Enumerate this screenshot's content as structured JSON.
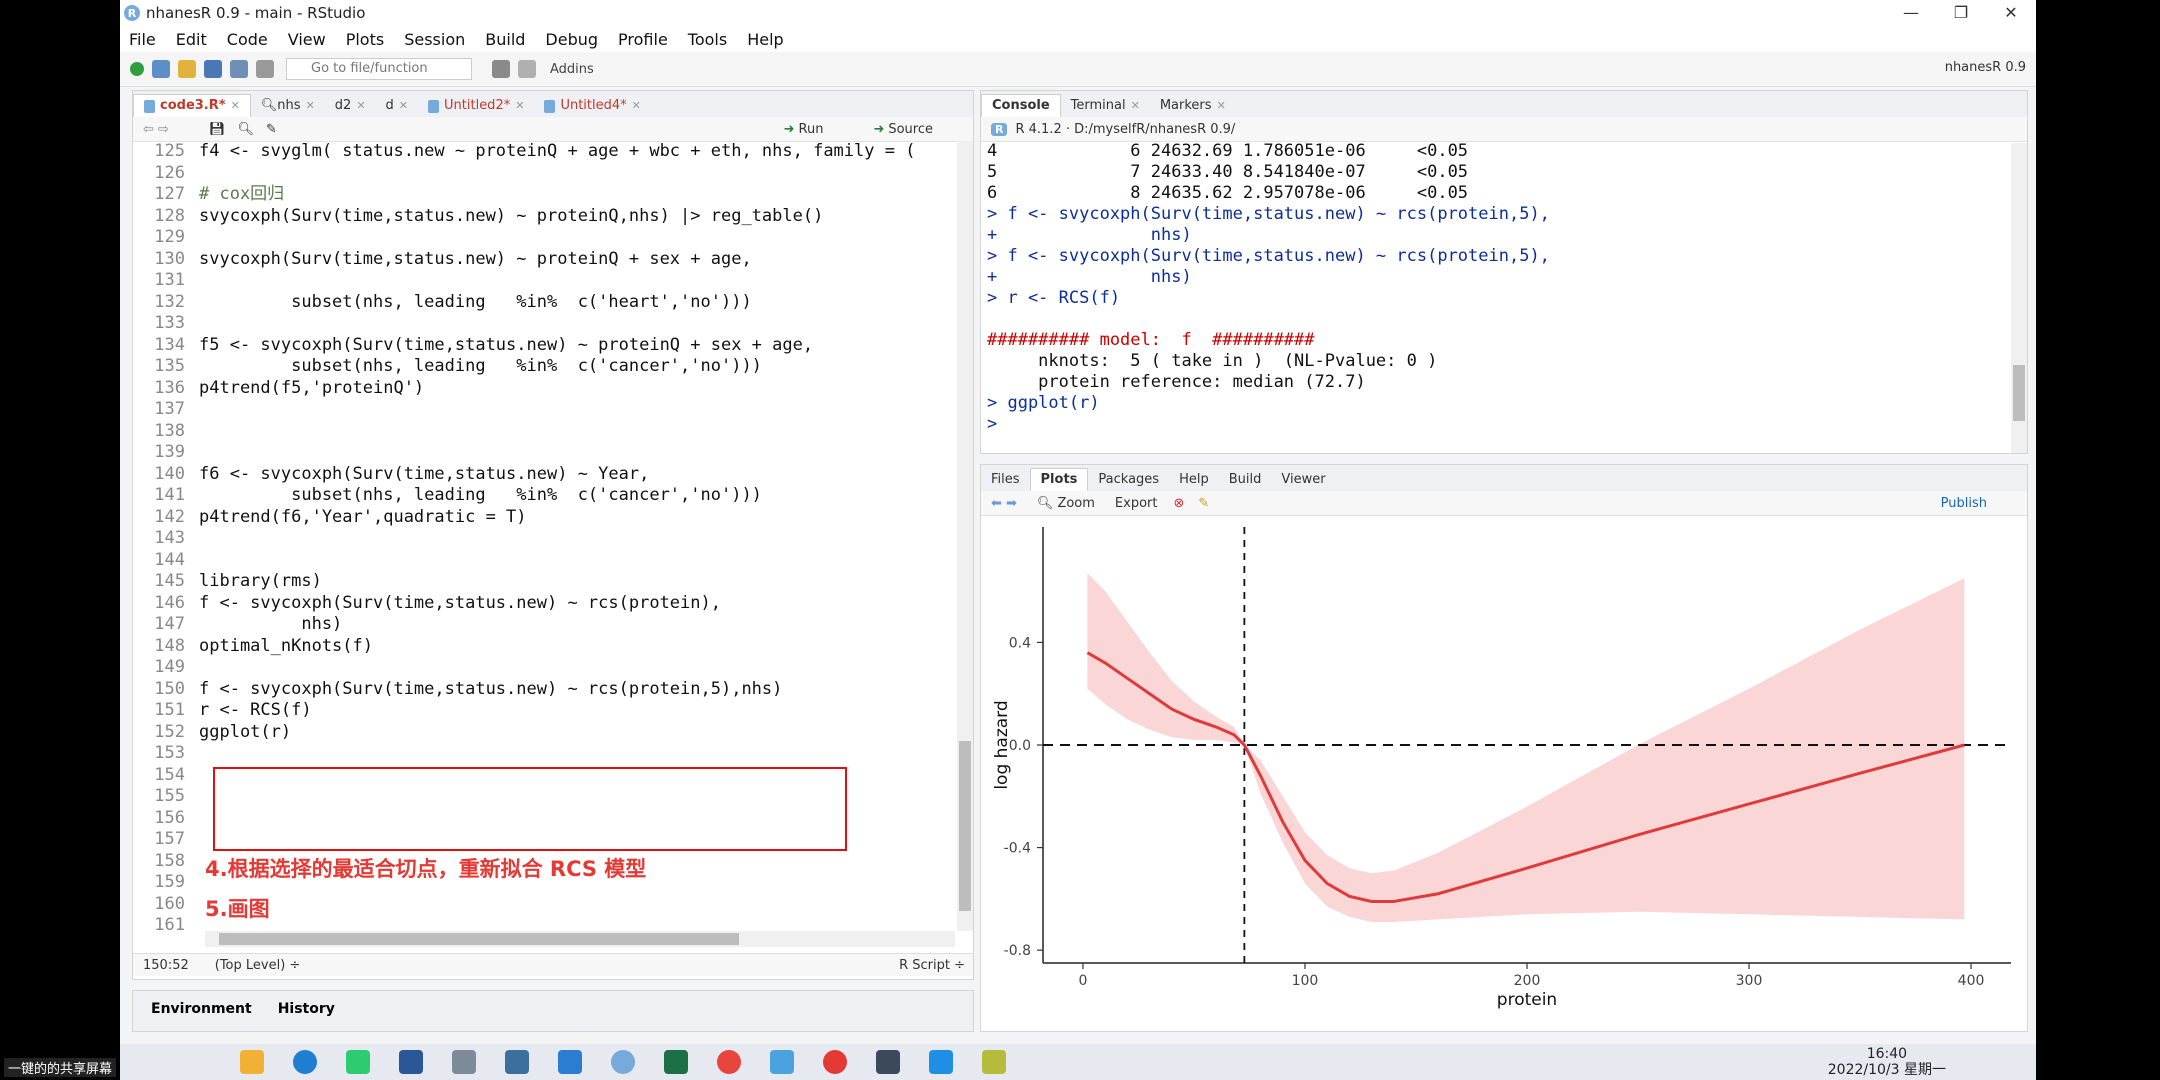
{
  "window": {
    "title": "nhanesR 0.9 - main - RStudio",
    "controls": [
      "—",
      "❐",
      "✕"
    ]
  },
  "menu": [
    "File",
    "Edit",
    "Code",
    "View",
    "Plots",
    "Session",
    "Build",
    "Debug",
    "Profile",
    "Tools",
    "Help"
  ],
  "toolbar": {
    "goto_placeholder": "Go to file/function",
    "addins": "Addins",
    "project": "nhanesR 0.9"
  },
  "editor": {
    "tabs": [
      "code3.R*",
      "nhs",
      "d2",
      "d",
      "Untitled2*",
      "Untitled4*"
    ],
    "run_label": "Run",
    "source_label": "Source",
    "lines": [
      {
        "n": "125",
        "t": "f4 <- svyglm( status.new ~ proteinQ + age + wbc + eth, nhs, family = ("
      },
      {
        "n": "126",
        "t": ""
      },
      {
        "n": "127",
        "t": "# cox回归"
      },
      {
        "n": "128",
        "t": "svycoxph(Surv(time,status.new) ~ proteinQ,nhs) |> reg_table()"
      },
      {
        "n": "129",
        "t": ""
      },
      {
        "n": "130",
        "t": "svycoxph(Surv(time,status.new) ~ proteinQ + sex + age,"
      },
      {
        "n": "131",
        "t": ""
      },
      {
        "n": "132",
        "t": "         subset(nhs, leading   %in%  c('heart','no')))"
      },
      {
        "n": "133",
        "t": ""
      },
      {
        "n": "134",
        "t": "f5 <- svycoxph(Surv(time,status.new) ~ proteinQ + sex + age,"
      },
      {
        "n": "135",
        "t": "         subset(nhs, leading   %in%  c('cancer','no')))"
      },
      {
        "n": "136",
        "t": "p4trend(f5,'proteinQ')"
      },
      {
        "n": "137",
        "t": ""
      },
      {
        "n": "138",
        "t": ""
      },
      {
        "n": "139",
        "t": ""
      },
      {
        "n": "140",
        "t": "f6 <- svycoxph(Surv(time,status.new) ~ Year,"
      },
      {
        "n": "141",
        "t": "         subset(nhs, leading   %in%  c('cancer','no')))"
      },
      {
        "n": "142",
        "t": "p4trend(f6,'Year',quadratic = T)"
      },
      {
        "n": "143",
        "t": ""
      },
      {
        "n": "144",
        "t": ""
      },
      {
        "n": "145",
        "t": "library(rms)"
      },
      {
        "n": "146",
        "t": "f <- svycoxph(Surv(time,status.new) ~ rcs(protein),"
      },
      {
        "n": "147",
        "t": "          nhs)"
      },
      {
        "n": "148",
        "t": "optimal_nKnots(f)"
      },
      {
        "n": "149",
        "t": ""
      },
      {
        "n": "150",
        "t": "f <- svycoxph(Surv(time,status.new) ~ rcs(protein,5),nhs)"
      },
      {
        "n": "151",
        "t": "r <- RCS(f)"
      },
      {
        "n": "152",
        "t": "ggplot(r)"
      },
      {
        "n": "153",
        "t": ""
      },
      {
        "n": "154",
        "t": ""
      },
      {
        "n": "155",
        "t": ""
      },
      {
        "n": "156",
        "t": ""
      },
      {
        "n": "157",
        "t": ""
      },
      {
        "n": "158",
        "t": ""
      },
      {
        "n": "159",
        "t": ""
      },
      {
        "n": "160",
        "t": ""
      },
      {
        "n": "161",
        "t": ""
      }
    ],
    "note1": "4.根据选择的最适合切点，重新拟合 RCS 模型",
    "note2": "5.画图",
    "status_pos": "150:52",
    "status_scope": "(Top Level) ÷",
    "status_type": "R Script ÷"
  },
  "env_tabs": [
    "Environment",
    "History"
  ],
  "console": {
    "tabs": [
      "Console",
      "Terminal",
      "Markers"
    ],
    "version": "R 4.1.2 · D:/myselfR/nhanesR 0.9/",
    "lines": [
      {
        "t": "4             6 24632.69 1.786051e-06     <0.05",
        "c": "out"
      },
      {
        "t": "5             7 24633.40 8.541840e-07     <0.05",
        "c": "out"
      },
      {
        "t": "6             8 24635.62 2.957078e-06     <0.05",
        "c": "out"
      },
      {
        "t": "> f <- svycoxph(Surv(time,status.new) ~ rcs(protein,5),",
        "c": "cmd"
      },
      {
        "t": "+               nhs)",
        "c": "cmd"
      },
      {
        "t": "> f <- svycoxph(Surv(time,status.new) ~ rcs(protein,5),",
        "c": "cmd"
      },
      {
        "t": "+               nhs)",
        "c": "cmd"
      },
      {
        "t": "> r <- RCS(f)",
        "c": "cmd"
      },
      {
        "t": "",
        "c": "out"
      },
      {
        "t": "########## model:  f  ##########",
        "c": "red"
      },
      {
        "t": "     nknots:  5 ( take in )  (NL-Pvalue: 0 )",
        "c": "out"
      },
      {
        "t": "     protein reference: median (72.7)",
        "c": "out"
      },
      {
        "t": "> ggplot(r)",
        "c": "cmd"
      },
      {
        "t": "> ",
        "c": "cmd"
      }
    ]
  },
  "files_pane": {
    "tabs": [
      "Files",
      "Plots",
      "Packages",
      "Help",
      "Build",
      "Viewer"
    ],
    "zoom": "Zoom",
    "export": "Export",
    "publish": "Publish"
  },
  "chart_data": {
    "type": "line",
    "xlabel": "protein",
    "ylabel": "log hazard",
    "xlim": [
      -18,
      418
    ],
    "ylim": [
      -0.85,
      0.85
    ],
    "x_ticks": [
      "0",
      "100",
      "200",
      "300",
      "400"
    ],
    "y_ticks": [
      "-0.8",
      "-0.4",
      "0.0",
      "0.4"
    ],
    "reference_vline": 72.7,
    "reference_hline": 0,
    "x": [
      2,
      10,
      20,
      30,
      40,
      50,
      60,
      68,
      72.7,
      80,
      90,
      100,
      110,
      120,
      130,
      140,
      160,
      200,
      250,
      300,
      350,
      397
    ],
    "y": [
      0.36,
      0.32,
      0.26,
      0.2,
      0.14,
      0.1,
      0.07,
      0.04,
      0.0,
      -0.12,
      -0.3,
      -0.45,
      -0.54,
      -0.59,
      -0.61,
      -0.61,
      -0.58,
      -0.48,
      -0.35,
      -0.23,
      -0.11,
      0.0
    ],
    "lower": [
      0.22,
      0.16,
      0.1,
      0.06,
      0.03,
      0.02,
      0.02,
      0.01,
      0.0,
      -0.19,
      -0.38,
      -0.54,
      -0.63,
      -0.67,
      -0.69,
      -0.69,
      -0.68,
      -0.66,
      -0.65,
      -0.66,
      -0.67,
      -0.68
    ],
    "upper": [
      0.67,
      0.6,
      0.48,
      0.36,
      0.25,
      0.17,
      0.11,
      0.07,
      0.0,
      -0.06,
      -0.2,
      -0.34,
      -0.43,
      -0.48,
      -0.5,
      -0.49,
      -0.42,
      -0.24,
      0.0,
      0.22,
      0.45,
      0.65
    ],
    "colors": {
      "line": "#e03a3a",
      "band": "#f9cfcf"
    }
  },
  "taskbar": {
    "share_label": "一键的的共享屏幕",
    "time": "16:40",
    "date": "2022/10/3 星期一"
  }
}
